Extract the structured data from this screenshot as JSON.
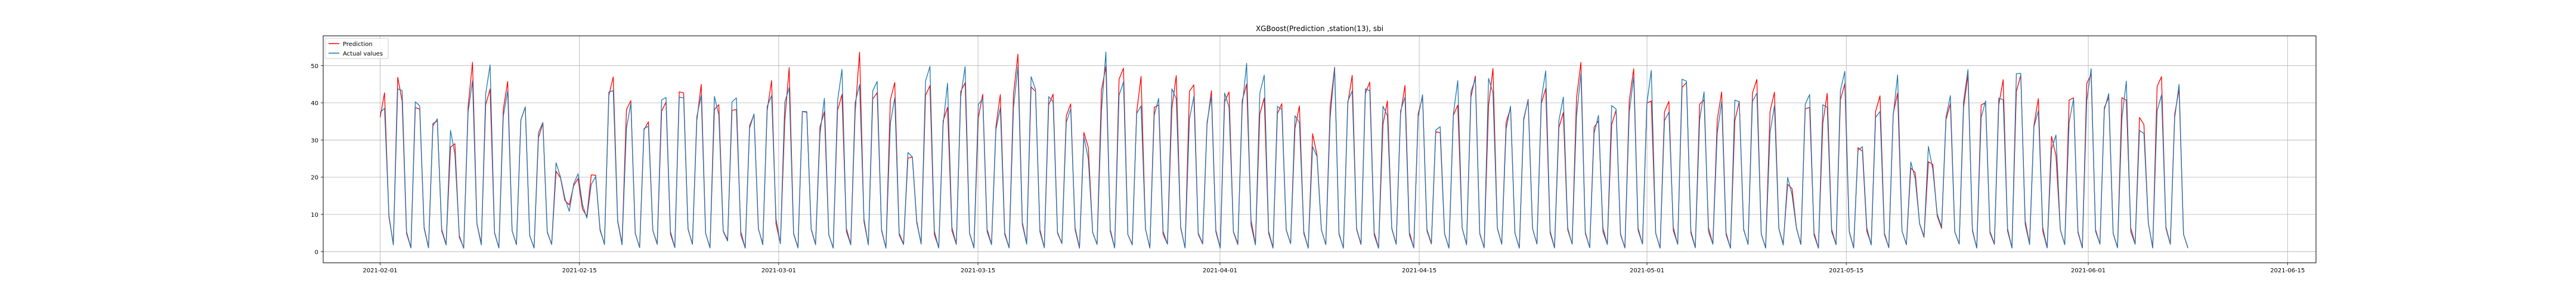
{
  "chart_data": {
    "type": "line",
    "title": "XGBoost(Prediction ,station(13), sbi",
    "xlabel": "",
    "ylabel": "",
    "x_range": [
      "2021-01-28",
      "2021-06-17"
    ],
    "ylim": [
      -3,
      58
    ],
    "grid": true,
    "legend_position": "top-left",
    "x_ticks": [
      "2021-02-01",
      "2021-02-15",
      "2021-03-01",
      "2021-03-15",
      "2021-04-01",
      "2021-04-15",
      "2021-05-01",
      "2021-05-15",
      "2021-06-01",
      "2021-06-15"
    ],
    "y_ticks": [
      0,
      10,
      20,
      30,
      40,
      50
    ],
    "x_start": "2021-02-01",
    "x_end": "2021-06-08",
    "series": [
      {
        "name": "Prediction",
        "color": "#ff0000",
        "values": [
          34,
          40,
          10,
          2,
          44,
          43,
          5,
          1,
          38,
          40,
          7,
          1,
          35,
          37,
          6,
          2,
          30,
          28,
          4,
          1,
          42,
          48,
          8,
          2,
          40,
          46,
          5,
          1,
          37,
          45,
          6,
          2,
          36,
          42,
          4,
          1,
          30,
          34,
          5,
          2,
          22,
          20,
          14,
          12,
          18,
          20,
          12,
          10,
          20,
          22,
          6,
          2,
          40,
          44,
          8,
          2,
          37,
          40,
          5,
          1,
          34,
          36,
          6,
          2,
          37,
          39,
          5,
          1,
          40,
          44,
          6,
          2,
          38,
          42,
          5,
          1,
          38,
          40,
          6,
          3,
          36,
          40,
          5,
          1,
          33,
          36,
          6,
          2,
          40,
          44,
          8,
          2,
          38,
          46,
          5,
          1,
          36,
          40,
          6,
          2,
          35,
          38,
          5,
          1,
          40,
          44,
          6,
          2,
          40,
          50,
          8,
          2,
          42,
          46,
          6,
          1,
          38,
          44,
          5,
          2,
          26,
          24,
          8,
          2,
          44,
          46,
          5,
          1,
          38,
          42,
          6,
          2,
          40,
          45,
          5,
          1,
          36,
          40,
          6,
          2,
          36,
          40,
          5,
          1,
          40,
          52,
          8,
          2,
          42,
          44,
          6,
          1,
          38,
          40,
          5,
          2,
          36,
          38,
          6,
          1,
          30,
          28,
          5,
          2,
          42,
          48,
          6,
          1,
          44,
          48,
          5,
          2,
          38,
          44,
          6,
          1,
          38,
          42,
          5,
          2,
          40,
          44,
          6,
          1,
          40,
          46,
          5,
          2,
          36,
          42,
          6,
          1,
          40,
          44,
          5,
          2,
          42,
          46,
          8,
          2,
          40,
          44,
          5,
          1,
          38,
          40,
          6,
          2,
          36,
          38,
          5,
          1,
          30,
          28,
          6,
          2,
          40,
          46,
          5,
          1,
          38,
          44,
          6,
          2,
          44,
          48,
          5,
          1,
          36,
          40,
          6,
          2,
          38,
          42,
          5,
          1,
          40,
          44,
          6,
          2,
          32,
          30,
          5,
          1,
          38,
          42,
          6,
          2,
          40,
          46,
          5,
          1,
          42,
          48,
          6,
          2,
          36,
          40,
          5,
          1,
          38,
          42,
          6,
          2,
          40,
          44,
          5,
          1,
          36,
          40,
          6,
          2,
          40,
          48,
          5,
          1,
          34,
          38,
          6,
          2,
          36,
          40,
          5,
          1,
          42,
          46,
          6,
          2,
          40,
          44,
          5,
          1,
          38,
          42,
          6,
          2,
          44,
          48,
          5,
          1,
          40,
          44,
          6,
          2,
          36,
          40,
          5,
          1,
          38,
          42,
          6,
          2,
          40,
          44,
          5,
          1,
          36,
          40,
          6,
          2,
          18,
          16,
          6,
          2,
          38,
          42,
          5,
          1,
          36,
          40,
          6,
          2,
          40,
          44,
          5,
          1,
          30,
          28,
          6,
          2,
          38,
          42,
          5,
          1,
          40,
          44,
          6,
          2,
          24,
          22,
          8,
          4,
          26,
          24,
          10,
          6,
          36,
          40,
          5,
          2,
          40,
          46,
          6,
          1,
          38,
          42,
          5,
          2,
          40,
          44,
          6,
          1,
          44,
          50,
          8,
          2,
          36,
          40,
          6,
          1,
          30,
          28,
          6,
          2,
          38,
          42,
          5,
          1,
          42,
          48,
          6,
          2,
          36,
          40,
          5,
          1,
          40,
          44,
          6,
          2,
          34,
          36,
          8,
          1,
          42,
          46,
          6,
          2,
          38,
          42,
          5,
          1
        ],
        "noise": 0.08
      },
      {
        "name": "Actual values",
        "color": "#1f77b4",
        "values": [
          34,
          40,
          10,
          2,
          44,
          43,
          5,
          1,
          38,
          40,
          7,
          1,
          35,
          37,
          6,
          2,
          30,
          28,
          4,
          1,
          42,
          48,
          8,
          2,
          40,
          46,
          5,
          1,
          37,
          45,
          6,
          2,
          36,
          42,
          4,
          1,
          30,
          34,
          5,
          2,
          22,
          20,
          14,
          12,
          18,
          20,
          12,
          10,
          20,
          22,
          6,
          2,
          40,
          44,
          8,
          2,
          37,
          40,
          5,
          1,
          34,
          36,
          6,
          2,
          37,
          39,
          5,
          1,
          40,
          44,
          6,
          2,
          38,
          42,
          5,
          1,
          38,
          40,
          6,
          3,
          36,
          40,
          5,
          1,
          33,
          36,
          6,
          2,
          40,
          44,
          8,
          2,
          38,
          46,
          5,
          1,
          36,
          40,
          6,
          2,
          35,
          38,
          5,
          1,
          40,
          44,
          6,
          2,
          40,
          50,
          8,
          2,
          42,
          46,
          6,
          1,
          38,
          44,
          5,
          2,
          26,
          24,
          8,
          2,
          44,
          46,
          5,
          1,
          38,
          42,
          6,
          2,
          40,
          45,
          5,
          1,
          36,
          40,
          6,
          2,
          36,
          40,
          5,
          1,
          40,
          52,
          8,
          2,
          42,
          44,
          6,
          1,
          38,
          40,
          5,
          2,
          36,
          38,
          6,
          1,
          30,
          28,
          5,
          2,
          42,
          48,
          6,
          1,
          44,
          48,
          5,
          2,
          38,
          44,
          6,
          1,
          38,
          42,
          5,
          2,
          40,
          44,
          6,
          1,
          40,
          46,
          5,
          2,
          36,
          42,
          6,
          1,
          40,
          44,
          5,
          2,
          42,
          46,
          8,
          2,
          40,
          44,
          5,
          1,
          38,
          40,
          6,
          2,
          36,
          38,
          5,
          1,
          30,
          28,
          6,
          2,
          40,
          46,
          5,
          1,
          38,
          44,
          6,
          2,
          44,
          48,
          5,
          1,
          36,
          40,
          6,
          2,
          38,
          42,
          5,
          1,
          40,
          44,
          6,
          2,
          32,
          30,
          5,
          1,
          38,
          42,
          6,
          2,
          40,
          46,
          5,
          1,
          42,
          48,
          6,
          2,
          36,
          40,
          5,
          1,
          38,
          42,
          6,
          2,
          40,
          44,
          5,
          1,
          36,
          40,
          6,
          2,
          40,
          48,
          5,
          1,
          34,
          38,
          6,
          2,
          36,
          40,
          5,
          1,
          42,
          46,
          6,
          2,
          40,
          44,
          5,
          1,
          38,
          42,
          6,
          2,
          44,
          48,
          5,
          1,
          40,
          44,
          6,
          2,
          36,
          40,
          5,
          1,
          38,
          42,
          6,
          2,
          40,
          44,
          5,
          1,
          36,
          40,
          6,
          2,
          18,
          16,
          6,
          2,
          38,
          42,
          5,
          1,
          36,
          40,
          6,
          2,
          40,
          44,
          5,
          1,
          30,
          28,
          6,
          2,
          38,
          42,
          5,
          1,
          40,
          44,
          6,
          2,
          24,
          22,
          8,
          4,
          26,
          24,
          10,
          6,
          36,
          40,
          5,
          2,
          40,
          46,
          6,
          1,
          38,
          42,
          5,
          2,
          40,
          44,
          6,
          1,
          44,
          50,
          8,
          2,
          36,
          40,
          6,
          1,
          30,
          28,
          6,
          2,
          38,
          42,
          5,
          1,
          42,
          48,
          6,
          2,
          36,
          40,
          5,
          1,
          40,
          44,
          6,
          2,
          34,
          36,
          8,
          1,
          42,
          46,
          6,
          2,
          38,
          42,
          5,
          1
        ],
        "noise": 0.12
      }
    ]
  }
}
